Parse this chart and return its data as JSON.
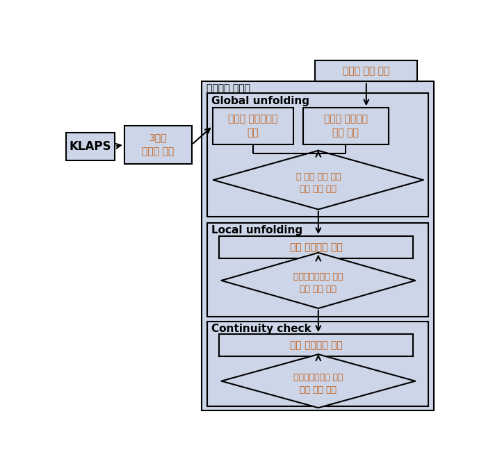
{
  "bg": "#ccd6e8",
  "ec": "#000000",
  "ko": "#c55a11",
  "white": "#ffffff",
  "labels": {
    "klaps": "KLAPS",
    "wind3d": "3차원\n바람장 자료",
    "radar_raw": "레이더 원시 자료",
    "system": "접힘풀기 시스템",
    "global": "Global unfolding",
    "local": "Local unfolding",
    "continuity": "Continuity check",
    "calc": "레이더 시선속도로\n계산",
    "input": "레이더 시선속도\n자료 입력",
    "d1": "두 입력 자료 비교\n접힘 플기 수행",
    "avg1": "평균 시선속도 산출",
    "d2": "평균시선속도와 비교\n접힘 플기 수행",
    "avg2": "평균 시선속도 산출",
    "d3": "평균시선속도와 비교\n접힘 플기 수행"
  },
  "layout": {
    "fig_w": 6.99,
    "fig_h": 6.71,
    "dpi": 100
  }
}
